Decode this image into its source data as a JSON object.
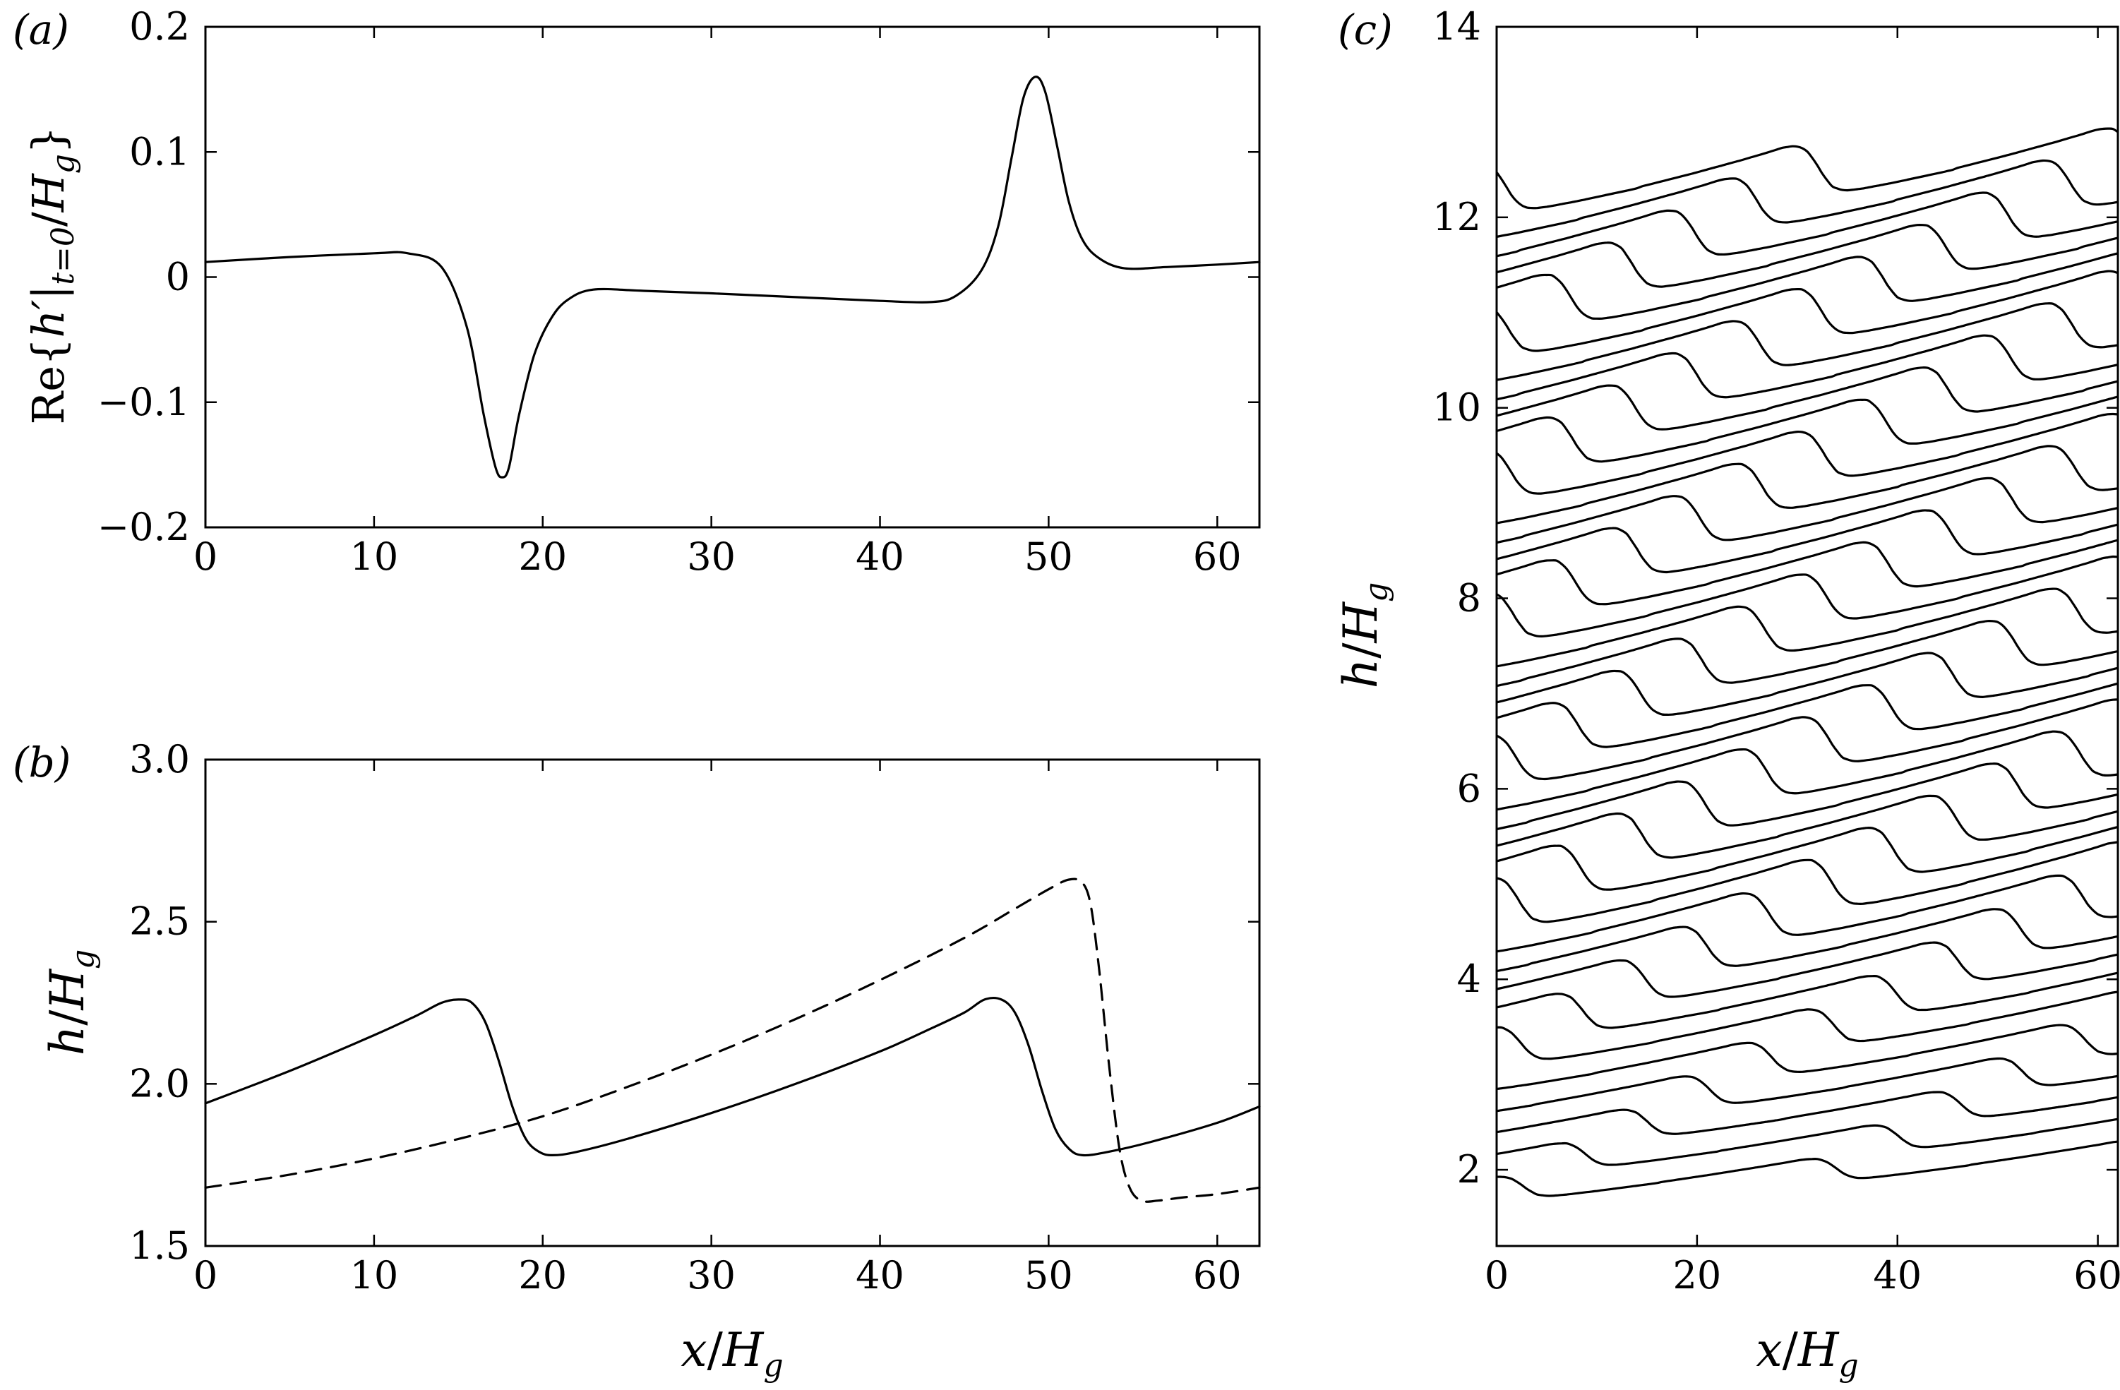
{
  "chart_data": [
    {
      "panel": "(a)",
      "type": "line",
      "xlabel": "",
      "ylabel_prefix": "Re{",
      "ylabel_h": "h",
      "ylabel_prime": "′",
      "ylabel_bar": "|",
      "ylabel_sub": "t=0",
      "ylabel_div": "/",
      "ylabel_H": "H",
      "ylabel_g": "g",
      "ylabel_suffix": "}",
      "xlim": [
        0,
        62.5
      ],
      "ylim": [
        -0.2,
        0.2
      ],
      "xticks": [
        0,
        10,
        20,
        30,
        40,
        50,
        60
      ],
      "xtick_labels": [
        "0",
        "10",
        "20",
        "30",
        "40",
        "50",
        "60"
      ],
      "yticks": [
        -0.2,
        -0.1,
        0,
        0.1,
        0.2
      ],
      "ytick_labels": [
        "−0.2",
        "−0.1",
        "0",
        "0.1",
        "0.2"
      ],
      "series": [
        {
          "name": "Re{h'|t=0/Hg}",
          "style": "solid",
          "x": [
            0,
            5,
            10,
            12,
            14,
            15.5,
            16.5,
            17.2,
            17.6,
            18.0,
            18.6,
            19.5,
            20.5,
            21.5,
            23,
            26,
            30,
            35,
            40,
            43,
            44.5,
            46,
            47.0,
            47.8,
            48.5,
            49.2,
            49.8,
            50.5,
            51.2,
            52,
            53,
            54.5,
            57,
            60,
            62.5
          ],
          "y": [
            0.012,
            0.016,
            0.019,
            0.019,
            0.008,
            -0.04,
            -0.11,
            -0.152,
            -0.16,
            -0.152,
            -0.11,
            -0.062,
            -0.033,
            -0.018,
            -0.01,
            -0.011,
            -0.013,
            -0.016,
            -0.019,
            -0.02,
            -0.015,
            0.005,
            0.04,
            0.095,
            0.143,
            0.16,
            0.148,
            0.105,
            0.06,
            0.03,
            0.015,
            0.007,
            0.008,
            0.01,
            0.012
          ]
        }
      ]
    },
    {
      "panel": "(b)",
      "type": "line",
      "xlabel_x": "x",
      "xlabel_div": "/",
      "xlabel_H": "H",
      "xlabel_g": "g",
      "ylabel_h": "h",
      "ylabel_div": "/",
      "ylabel_H": "H",
      "ylabel_g": "g",
      "xlim": [
        0,
        62.5
      ],
      "ylim": [
        1.5,
        3.0
      ],
      "xticks": [
        0,
        10,
        20,
        30,
        40,
        50,
        60
      ],
      "xtick_labels": [
        "0",
        "10",
        "20",
        "30",
        "40",
        "50",
        "60"
      ],
      "yticks": [
        1.5,
        2.0,
        2.5,
        3.0
      ],
      "ytick_labels": [
        "1.5",
        "2.0",
        "2.5",
        "3.0"
      ],
      "series": [
        {
          "name": "solid",
          "style": "solid",
          "x": [
            0,
            5,
            10,
            12.5,
            14,
            15,
            15.8,
            16.6,
            17.4,
            18.2,
            19.0,
            19.8,
            20.6,
            22,
            25,
            30,
            35,
            40,
            43,
            45,
            46.2,
            47.2,
            48.0,
            48.8,
            49.6,
            50.4,
            51.2,
            52,
            53.5,
            56,
            60,
            62.5
          ],
          "y": [
            1.94,
            2.04,
            2.15,
            2.21,
            2.25,
            2.26,
            2.25,
            2.19,
            2.07,
            1.93,
            1.83,
            1.79,
            1.78,
            1.79,
            1.83,
            1.91,
            2.0,
            2.1,
            2.17,
            2.22,
            2.26,
            2.26,
            2.22,
            2.12,
            1.98,
            1.86,
            1.8,
            1.78,
            1.79,
            1.82,
            1.88,
            1.93
          ]
        },
        {
          "name": "dashed",
          "style": "dashed",
          "x": [
            0,
            5,
            10,
            15,
            20,
            25,
            30,
            35,
            40,
            45,
            48,
            50,
            51.2,
            52.0,
            52.5,
            53.0,
            53.6,
            54.2,
            54.8,
            55.5,
            56.5,
            58,
            60,
            62.5
          ],
          "y": [
            1.68,
            1.72,
            1.77,
            1.83,
            1.9,
            1.99,
            2.09,
            2.2,
            2.32,
            2.45,
            2.54,
            2.6,
            2.63,
            2.62,
            2.55,
            2.35,
            2.05,
            1.8,
            1.68,
            1.64,
            1.64,
            1.65,
            1.66,
            1.68
          ]
        }
      ]
    },
    {
      "panel": "(c)",
      "type": "line",
      "xlabel_x": "x",
      "xlabel_div": "/",
      "xlabel_H": "H",
      "xlabel_g": "g",
      "ylabel_h": "h",
      "ylabel_div": "/",
      "ylabel_H": "H",
      "ylabel_g": "g",
      "xlim": [
        0,
        62
      ],
      "ylim": [
        1.2,
        14
      ],
      "xticks": [
        0,
        20,
        40,
        60
      ],
      "xtick_labels": [
        "0",
        "20",
        "40",
        "60"
      ],
      "yticks": [
        2,
        4,
        6,
        8,
        10,
        12,
        14
      ],
      "ytick_labels": [
        "2",
        "4",
        "6",
        "8",
        "10",
        "12",
        "14"
      ],
      "num_profiles": 36,
      "profile_offset_start": 1.8,
      "profile_offset_step": 0.3,
      "shift_per_profile": 6.2,
      "description_free": true
    }
  ],
  "panel_labels": {
    "a": "(a)",
    "b": "(b)",
    "c": "(c)"
  }
}
